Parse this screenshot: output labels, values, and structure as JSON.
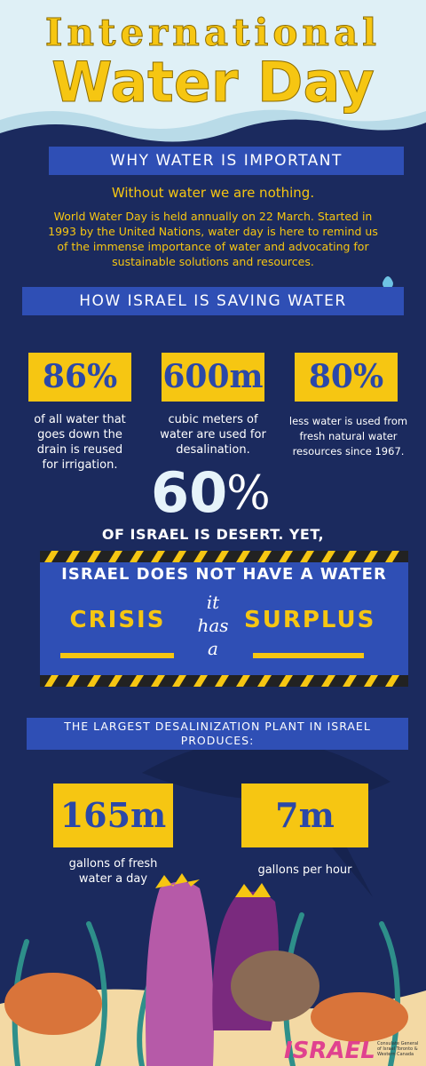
{
  "header": {
    "title_line1": "International",
    "title_line2": "Water Day"
  },
  "why": {
    "heading": "WHY WATER IS IMPORTANT",
    "tagline": "Without water we are nothing.",
    "paragraph": "World Water Day is held annually on 22 March. Started in 1993 by the United Nations, water day is here to remind us of the immense importance of water and advocating for sustainable solutions and resources."
  },
  "saving": {
    "heading": "HOW ISRAEL IS SAVING WATER",
    "stats": [
      {
        "value": "86%",
        "text": "of all water that goes down the drain is reused for irrigation."
      },
      {
        "value": "600m",
        "text": "cubic meters of water are used for desalination."
      },
      {
        "value": "80%",
        "text": "less water is used from fresh natural water resources since 1967."
      }
    ]
  },
  "desert": {
    "number": "60",
    "unit": "%",
    "text": "OF ISRAEL IS DESERT. YET,"
  },
  "crisis": {
    "heading": "ISRAEL DOES NOT HAVE A WATER",
    "left": "CRISIS",
    "middle": [
      "it",
      "has",
      "a"
    ],
    "right": "SURPLUS"
  },
  "plant": {
    "heading": "THE LARGEST DESALINIZATION  PLANT IN ISRAEL PRODUCES:",
    "stats": [
      {
        "value": "165m",
        "text": "gallons of fresh water a day"
      },
      {
        "value": "7m",
        "text": "gallons per hour"
      }
    ]
  },
  "footer": {
    "logo": "ISRAEL",
    "consulate": "Consulate General of Israel Toronto & Western Canada"
  }
}
